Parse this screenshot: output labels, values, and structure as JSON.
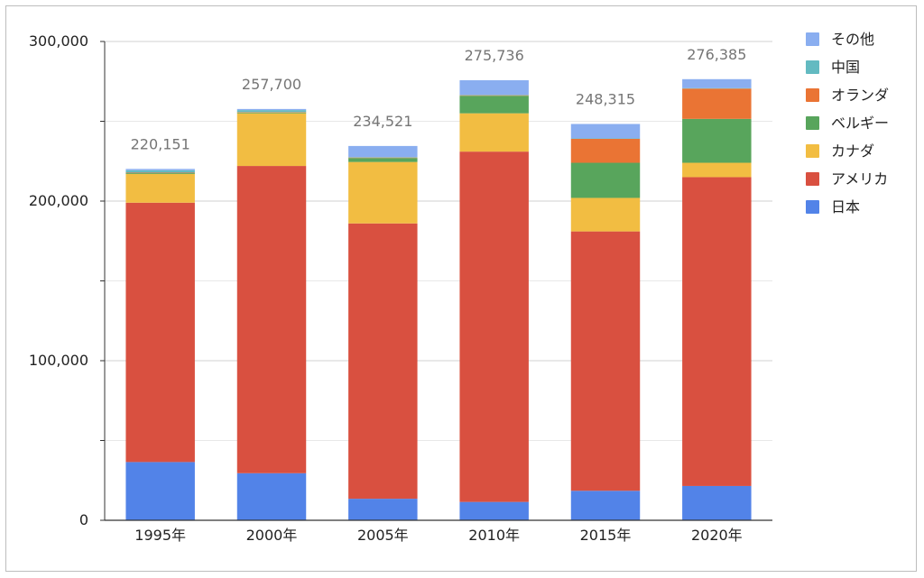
{
  "chart_data": {
    "type": "bar",
    "stacked": true,
    "categories": [
      "1995年",
      "2000年",
      "2005年",
      "2010年",
      "2015年",
      "2020年"
    ],
    "totals": [
      220151,
      257700,
      234521,
      275736,
      248315,
      276385
    ],
    "total_labels": [
      "220,151",
      "257,700",
      "234,521",
      "275,736",
      "248,315",
      "276,385"
    ],
    "y_ticks": [
      0,
      100000,
      200000,
      300000
    ],
    "y_tick_labels": [
      "0",
      "100,000",
      "200,000",
      "300,000"
    ],
    "y_minor_ticks": [
      50000,
      150000,
      250000
    ],
    "ylim": [
      0,
      300000
    ],
    "grid": true,
    "legend_position": "right",
    "series": [
      {
        "name": "日本",
        "color": "#5283e8",
        "values": [
          36500,
          29500,
          13500,
          11500,
          18500,
          21500
        ]
      },
      {
        "name": "アメリカ",
        "color": "#d95040",
        "values": [
          162500,
          192500,
          172500,
          219500,
          162500,
          193500
        ]
      },
      {
        "name": "カナダ",
        "color": "#f2bd42",
        "values": [
          18000,
          33000,
          38500,
          24000,
          21000,
          9000
        ]
      },
      {
        "name": "ベルギー",
        "color": "#58a55c",
        "values": [
          500,
          500,
          2500,
          11000,
          22000,
          27500
        ]
      },
      {
        "name": "オランダ",
        "color": "#ea7434",
        "values": [
          300,
          300,
          300,
          300,
          15000,
          19000
        ]
      },
      {
        "name": "中国",
        "color": "#63bac1",
        "values": [
          1500,
          1200,
          300,
          300,
          300,
          300
        ]
      },
      {
        "name": "その他",
        "color": "#8aaef0",
        "values": [
          851,
          700,
          6921,
          9136,
          9015,
          5585
        ]
      }
    ]
  }
}
